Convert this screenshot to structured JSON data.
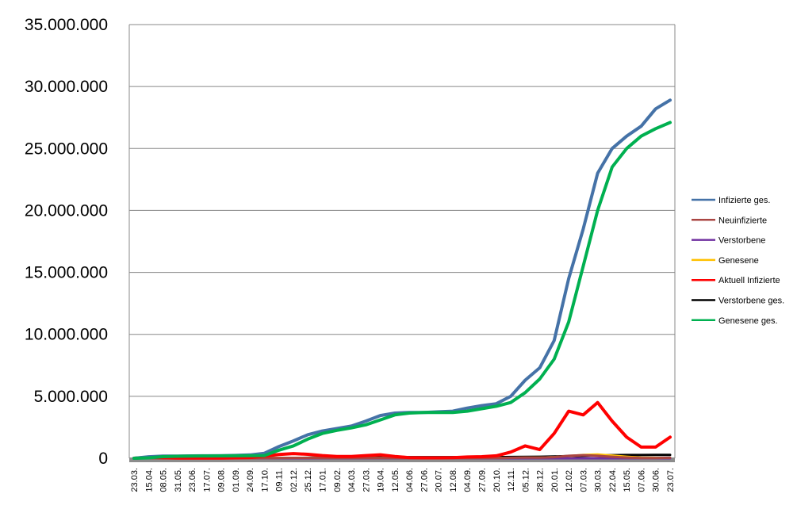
{
  "chart_data": {
    "type": "line",
    "title": "",
    "xlabel": "",
    "ylabel": "",
    "ylim": [
      0,
      35000000
    ],
    "grid": "horizontal",
    "legend_position": "right",
    "y_ticks": [
      "0",
      "5.000.000",
      "10.000.000",
      "15.000.000",
      "20.000.000",
      "25.000.000",
      "30.000.000",
      "35.000.000"
    ],
    "x_ticks": [
      "23.03.",
      "15.04.",
      "08.05.",
      "31.05.",
      "23.06.",
      "17.07.",
      "09.08.",
      "01.09.",
      "24.09.",
      "17.10.",
      "09.11.",
      "02.12.",
      "25.12.",
      "17.01.",
      "09.02.",
      "04.03.",
      "27.03.",
      "19.04.",
      "12.05.",
      "04.06.",
      "27.06.",
      "20.07.",
      "12.08.",
      "04.09.",
      "27.09.",
      "20.10.",
      "12.11.",
      "05.12.",
      "28.12.",
      "20.01.",
      "12.02.",
      "07.03.",
      "30.03.",
      "22.04.",
      "15.05.",
      "07.06.",
      "30.06.",
      "23.07."
    ],
    "series": [
      {
        "name": "Infizierte ges.",
        "color": "#4572A7",
        "values": [
          0,
          120000,
          170000,
          180000,
          190000,
          200000,
          210000,
          230000,
          270000,
          400000,
          950000,
          1400000,
          1900000,
          2200000,
          2400000,
          2600000,
          3000000,
          3450000,
          3650000,
          3700000,
          3700000,
          3750000,
          3800000,
          4050000,
          4250000,
          4400000,
          5000000,
          6300000,
          7300000,
          9500000,
          14500000,
          18500000,
          23000000,
          25000000,
          26000000,
          26800000,
          28200000,
          28900000
        ]
      },
      {
        "name": "Neuinfizierte",
        "color": "#AA4643",
        "values": [
          0,
          2000,
          1000,
          1000,
          1000,
          1000,
          1000,
          1000,
          2000,
          6000,
          20000,
          25000,
          25000,
          20000,
          12000,
          10000,
          15000,
          18000,
          10000,
          6000,
          5000,
          5000,
          6000,
          8000,
          10000,
          15000,
          40000,
          55000,
          50000,
          90000,
          200000,
          250000,
          200000,
          120000,
          60000,
          20000,
          20000,
          40000
        ]
      },
      {
        "name": "Verstorbene",
        "color": "#7030A0",
        "values": [
          0,
          100,
          80,
          50,
          30,
          20,
          20,
          30,
          50,
          150,
          400,
          600,
          700,
          600,
          400,
          300,
          300,
          400,
          300,
          200,
          100,
          100,
          100,
          150,
          200,
          250,
          400,
          500,
          600,
          800,
          1200,
          1300,
          1200,
          900,
          500,
          300,
          200,
          250
        ]
      },
      {
        "name": "Genesene",
        "color": "#FFC000",
        "values": [
          0,
          3000,
          2000,
          1000,
          1000,
          1000,
          1000,
          1000,
          1500,
          5000,
          15000,
          22000,
          25000,
          22000,
          15000,
          10000,
          12000,
          16000,
          12000,
          8000,
          5000,
          5000,
          5000,
          7000,
          9000,
          12000,
          25000,
          50000,
          50000,
          90000,
          180000,
          260000,
          300000,
          220000,
          120000,
          50000,
          30000,
          30000
        ]
      },
      {
        "name": "Aktuell Infizierte",
        "color": "#FF0000",
        "values": [
          0,
          90000,
          40000,
          20000,
          15000,
          15000,
          20000,
          30000,
          60000,
          180000,
          300000,
          380000,
          320000,
          220000,
          150000,
          140000,
          220000,
          280000,
          150000,
          50000,
          30000,
          30000,
          50000,
          100000,
          130000,
          200000,
          500000,
          1000000,
          700000,
          2000000,
          3800000,
          3500000,
          4500000,
          3000000,
          1700000,
          900000,
          900000,
          1700000
        ]
      },
      {
        "name": "Verstorbene ges.",
        "color": "#000000",
        "values": [
          0,
          3000,
          5000,
          6000,
          6000,
          6500,
          7000,
          7500,
          8000,
          10000,
          15000,
          25000,
          40000,
          55000,
          65000,
          70000,
          75000,
          80000,
          85000,
          88000,
          89000,
          90000,
          91000,
          92000,
          93000,
          95000,
          100000,
          110000,
          120000,
          140000,
          170000,
          200000,
          230000,
          250000,
          260000,
          265000,
          270000,
          275000
        ]
      },
      {
        "name": "Genesene ges.",
        "color": "#00B050",
        "values": [
          0,
          30000,
          130000,
          160000,
          175000,
          185000,
          190000,
          200000,
          210000,
          220000,
          650000,
          1000000,
          1550000,
          2000000,
          2250000,
          2450000,
          2700000,
          3100000,
          3500000,
          3650000,
          3700000,
          3700000,
          3700000,
          3800000,
          4000000,
          4200000,
          4500000,
          5300000,
          6400000,
          8000000,
          11000000,
          15500000,
          20000000,
          23500000,
          25000000,
          26000000,
          26600000,
          27100000
        ]
      }
    ]
  }
}
